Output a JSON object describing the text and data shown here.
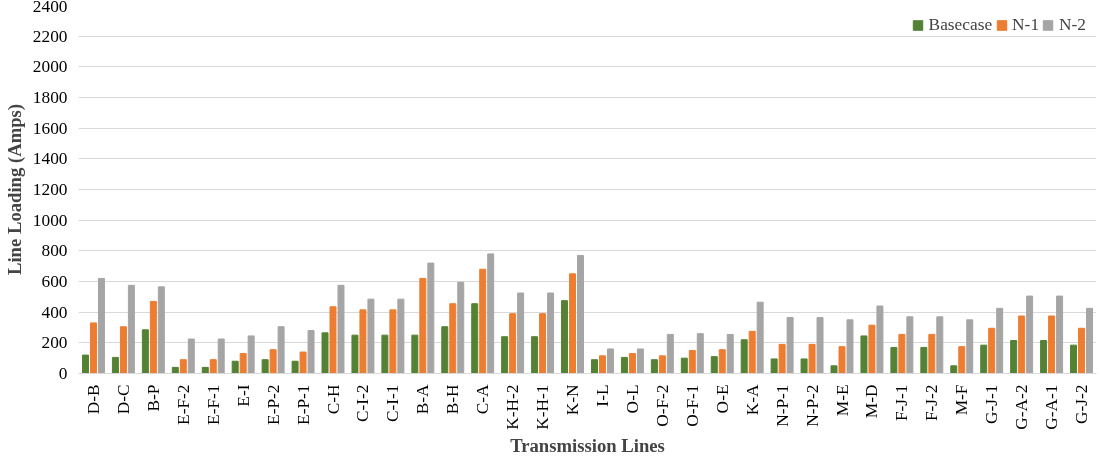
{
  "chart_data": {
    "type": "bar",
    "xlabel": "Transmission Lines",
    "ylabel": "Line Loading (Amps)",
    "categories": [
      "D-B",
      "D-C",
      "B-P",
      "E-F-2",
      "E-F-1",
      "E-I",
      "E-P-2",
      "E-P-1",
      "C-H",
      "C-I-2",
      "C-I-1",
      "B-A",
      "B-H",
      "C-A",
      "K-H-2",
      "K-H-1",
      "K-N",
      "I-L",
      "O-L",
      "O-F-2",
      "O-F-1",
      "O-E",
      "K-A",
      "N-P-1",
      "N-P-2",
      "M-E",
      "M-D",
      "F-J-1",
      "F-J-2",
      "M-F",
      "G-J-1",
      "G-A-2",
      "G-A-1",
      "G-J-2"
    ],
    "series": [
      {
        "name": "Basecase",
        "color": "#548235",
        "values": [
          120,
          105,
          285,
          40,
          40,
          80,
          90,
          80,
          265,
          250,
          250,
          250,
          305,
          455,
          240,
          240,
          475,
          90,
          105,
          90,
          100,
          110,
          220,
          95,
          95,
          50,
          245,
          170,
          170,
          50,
          185,
          215,
          215,
          185
        ]
      },
      {
        "name": "N-1",
        "color": "#ed7d31",
        "values": [
          330,
          305,
          470,
          90,
          90,
          130,
          155,
          140,
          435,
          415,
          415,
          620,
          455,
          680,
          390,
          390,
          650,
          115,
          130,
          115,
          150,
          155,
          275,
          190,
          190,
          175,
          315,
          255,
          255,
          175,
          295,
          375,
          375,
          295
        ]
      },
      {
        "name": "N-2",
        "color": "#a5a5a5",
        "values": [
          620,
          575,
          565,
          225,
          225,
          245,
          305,
          280,
          575,
          485,
          485,
          720,
          595,
          780,
          525,
          525,
          770,
          160,
          160,
          255,
          260,
          255,
          465,
          365,
          365,
          350,
          440,
          370,
          370,
          350,
          425,
          505,
          505,
          425
        ]
      }
    ],
    "ylim": [
      0,
      2400
    ],
    "yticks": [
      0,
      200,
      400,
      600,
      800,
      1000,
      1200,
      1400,
      1600,
      1800,
      2000,
      2200,
      2400
    ],
    "grid": "y",
    "legend": "top right"
  }
}
